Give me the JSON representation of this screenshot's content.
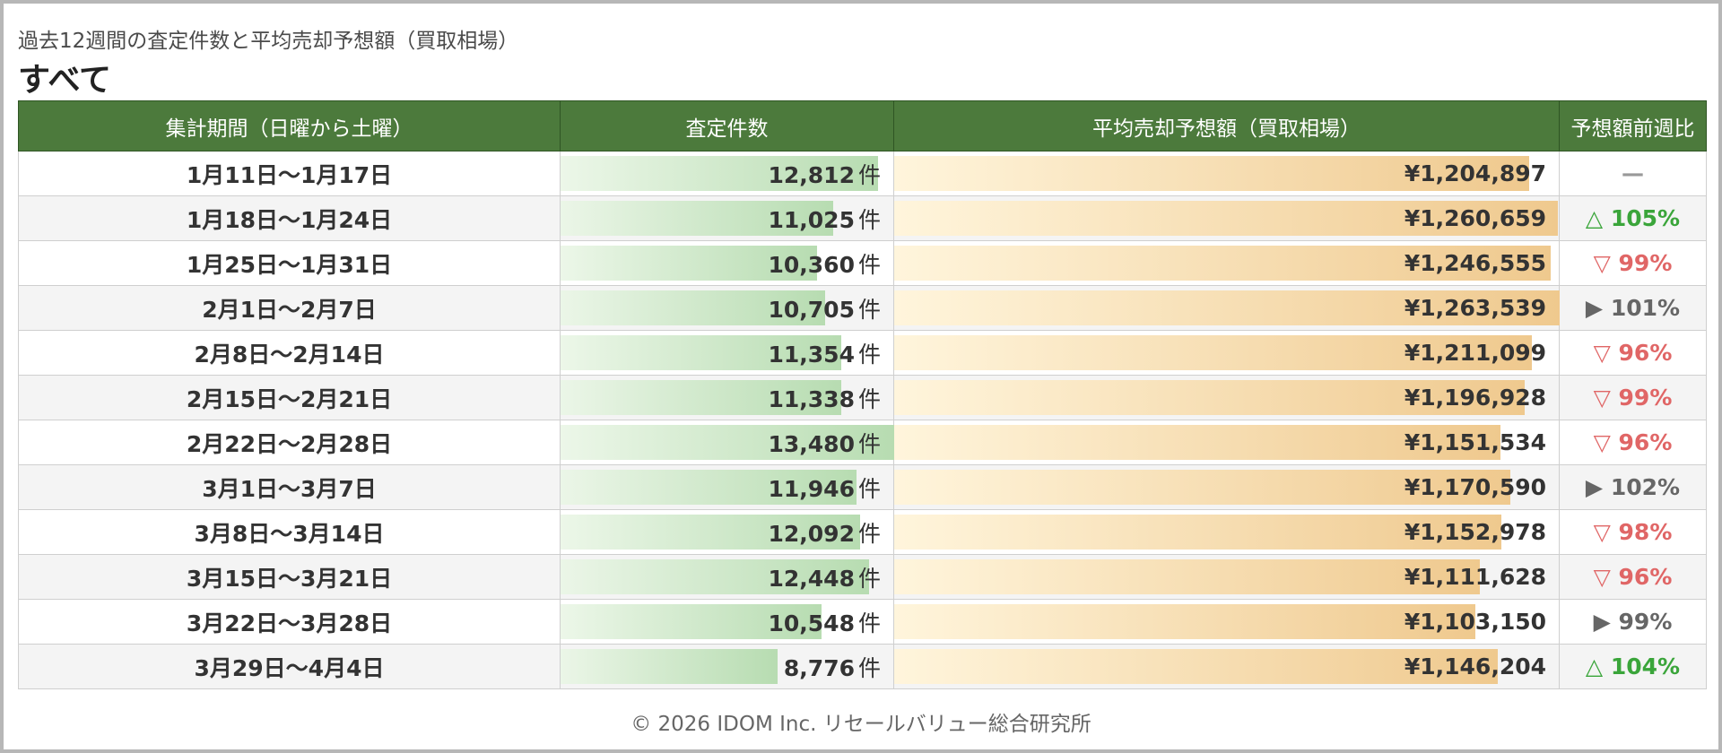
{
  "subtitle": "過去12週間の査定件数と平均売却予想額（買取相場）",
  "heading": "すべて",
  "table": {
    "headers": {
      "period": "集計期間（日曜から土曜）",
      "count": "査定件数",
      "price": "平均売却予想額（買取相場）",
      "ratio": "予想額前週比"
    },
    "count_max": 13480,
    "price_max": 1263539,
    "count_unit": "件",
    "colors": {
      "header_bg": "#4c7a3c",
      "up": "#3aa53a",
      "down": "#e06666",
      "flat": "#666666"
    },
    "rows": [
      {
        "period": "1月11日〜1月17日",
        "count": 12812,
        "count_text": "12,812",
        "price": 1204897,
        "price_text": "¥1,204,897",
        "ratio_text": "—",
        "ratio_type": "none"
      },
      {
        "period": "1月18日〜1月24日",
        "count": 11025,
        "count_text": "11,025",
        "price": 1260659,
        "price_text": "¥1,260,659",
        "ratio_text": "△ 105%",
        "ratio_type": "up"
      },
      {
        "period": "1月25日〜1月31日",
        "count": 10360,
        "count_text": "10,360",
        "price": 1246555,
        "price_text": "¥1,246,555",
        "ratio_text": "▽ 99%",
        "ratio_type": "down"
      },
      {
        "period": "2月1日〜2月7日",
        "count": 10705,
        "count_text": "10,705",
        "price": 1263539,
        "price_text": "¥1,263,539",
        "ratio_text": "▶ 101%",
        "ratio_type": "flat"
      },
      {
        "period": "2月8日〜2月14日",
        "count": 11354,
        "count_text": "11,354",
        "price": 1211099,
        "price_text": "¥1,211,099",
        "ratio_text": "▽ 96%",
        "ratio_type": "down"
      },
      {
        "period": "2月15日〜2月21日",
        "count": 11338,
        "count_text": "11,338",
        "price": 1196928,
        "price_text": "¥1,196,928",
        "ratio_text": "▽ 99%",
        "ratio_type": "down"
      },
      {
        "period": "2月22日〜2月28日",
        "count": 13480,
        "count_text": "13,480",
        "price": 1151534,
        "price_text": "¥1,151,534",
        "ratio_text": "▽ 96%",
        "ratio_type": "down"
      },
      {
        "period": "3月1日〜3月7日",
        "count": 11946,
        "count_text": "11,946",
        "price": 1170590,
        "price_text": "¥1,170,590",
        "ratio_text": "▶ 102%",
        "ratio_type": "flat"
      },
      {
        "period": "3月8日〜3月14日",
        "count": 12092,
        "count_text": "12,092",
        "price": 1152978,
        "price_text": "¥1,152,978",
        "ratio_text": "▽ 98%",
        "ratio_type": "down"
      },
      {
        "period": "3月15日〜3月21日",
        "count": 12448,
        "count_text": "12,448",
        "price": 1111628,
        "price_text": "¥1,111,628",
        "ratio_text": "▽ 96%",
        "ratio_type": "down"
      },
      {
        "period": "3月22日〜3月28日",
        "count": 10548,
        "count_text": "10,548",
        "price": 1103150,
        "price_text": "¥1,103,150",
        "ratio_text": "▶ 99%",
        "ratio_type": "flat"
      },
      {
        "period": "3月29日〜4月4日",
        "count": 8776,
        "count_text": "8,776",
        "price": 1146204,
        "price_text": "¥1,146,204",
        "ratio_text": "△ 104%",
        "ratio_type": "up"
      }
    ]
  },
  "footer": "© 2026 IDOM Inc. リセールバリュー総合研究所"
}
